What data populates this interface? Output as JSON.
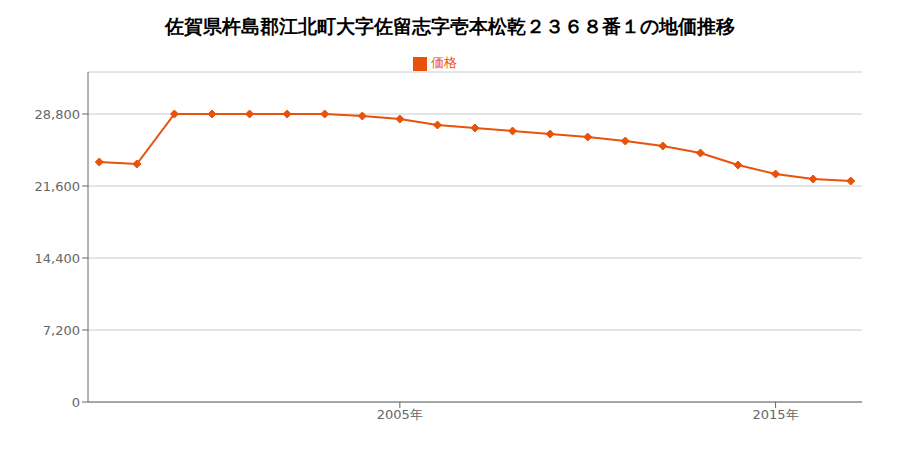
{
  "chart_data": {
    "type": "line",
    "title": "佐賀県杵島郡江北町大字佐留志字壱本松乾２３６８番１の地価推移",
    "x": [
      1997,
      1998,
      1999,
      2000,
      2001,
      2002,
      2003,
      2004,
      2005,
      2006,
      2007,
      2008,
      2009,
      2010,
      2011,
      2012,
      2013,
      2014,
      2015,
      2016,
      2017
    ],
    "series": [
      {
        "name": "価格",
        "color": "#e8520a",
        "marker": "diamond",
        "values": [
          24000,
          23800,
          28800,
          28800,
          28800,
          28800,
          28800,
          28600,
          28300,
          27700,
          27400,
          27100,
          26800,
          26500,
          26100,
          25600,
          24900,
          23700,
          22800,
          22300,
          22100
        ]
      }
    ],
    "xlim": [
      1996.7,
      2017.3
    ],
    "xticks": [
      {
        "value": 2005,
        "label": "2005年"
      },
      {
        "value": 2015,
        "label": "2015年"
      }
    ],
    "ylim": [
      0,
      33000
    ],
    "yticks": [
      0,
      {
        "value": 7200,
        "label": "7,200"
      },
      {
        "value": 14400,
        "label": "14,400"
      },
      {
        "value": 21600,
        "label": "21,600"
      },
      {
        "value": 28800,
        "label": "28,800"
      }
    ],
    "grid": true,
    "legend": "top"
  }
}
